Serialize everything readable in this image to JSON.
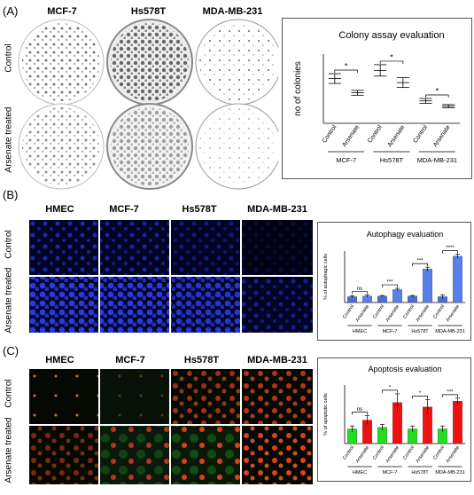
{
  "panel_a": {
    "label": "(A)",
    "columns": [
      "MCF-7",
      "Hs578T",
      "MDA-MB-231"
    ],
    "rows": [
      "Control",
      "Arsenate treated"
    ]
  },
  "panel_b": {
    "label": "(B)",
    "columns": [
      "HMEC",
      "MCF-7",
      "Hs578T",
      "MDA-MB-231"
    ],
    "rows": [
      "Control",
      "Arsenate treated"
    ]
  },
  "panel_c": {
    "label": "(C)",
    "columns": [
      "HMEC",
      "MCF-7",
      "Hs578T",
      "MDA-MB-231"
    ],
    "rows": [
      "Control",
      "Arsenate treated"
    ]
  },
  "chart_data": [
    {
      "type": "box",
      "title": "Colony assay evaluation",
      "ylabel": "no of colonies",
      "xlabel": "",
      "categories": [
        "Control",
        "Arsenate",
        "Control",
        "Arsenate",
        "Control",
        "Arsenate"
      ],
      "groups": [
        "MCF-7",
        "Hs578T",
        "MDA-MB-231"
      ],
      "values": [
        160,
        125,
        180,
        150,
        105,
        92
      ],
      "spread": [
        12,
        6,
        14,
        12,
        6,
        4
      ],
      "significance": [
        "*",
        "*",
        "*"
      ],
      "ylim": [
        50,
        220
      ]
    },
    {
      "type": "bar",
      "title": "Autophagy evaluation",
      "ylabel": "% of autophagic cells",
      "categories": [
        "Control",
        "Arsenate",
        "Control",
        "Arsenate",
        "Control",
        "Arsenate",
        "Control",
        "Arsenate"
      ],
      "groups": [
        "HMEC",
        "MCF-7",
        "Hs578T",
        "MDA-MB-231"
      ],
      "values": [
        9,
        10,
        10,
        20,
        10,
        52,
        9,
        72
      ],
      "errors": [
        1.5,
        1.5,
        1,
        2,
        1,
        3,
        3,
        3
      ],
      "colors": [
        "#4a6fd8",
        "#5a7fe8",
        "#4a6fd8",
        "#5a7fe8",
        "#4a6fd8",
        "#5a7fe8",
        "#4a6fd8",
        "#5a7fe8"
      ],
      "significance": [
        "ns",
        "***",
        "***",
        "****"
      ],
      "ylim": [
        0,
        80
      ]
    },
    {
      "type": "bar",
      "title": "Apoptosis evaluation",
      "ylabel": "% of apoptotic cells",
      "categories": [
        "Control",
        "Arsenate",
        "Control",
        "Arsenate",
        "Control",
        "Arsenate",
        "Control",
        "Arsenate"
      ],
      "groups": [
        "HMEC",
        "MCF-7",
        "Hs578T",
        "MDA-MB-231"
      ],
      "values": [
        10,
        16,
        11,
        28,
        10,
        25,
        10,
        29
      ],
      "errors": [
        2,
        3,
        2,
        6,
        2,
        5,
        2,
        2
      ],
      "colors": [
        "#22dd22",
        "#ee1111",
        "#22dd22",
        "#ee1111",
        "#22dd22",
        "#ee1111",
        "#22dd22",
        "#ee1111"
      ],
      "significance": [
        "ns",
        "*",
        "*",
        "***"
      ],
      "ylim": [
        0,
        40
      ]
    }
  ]
}
